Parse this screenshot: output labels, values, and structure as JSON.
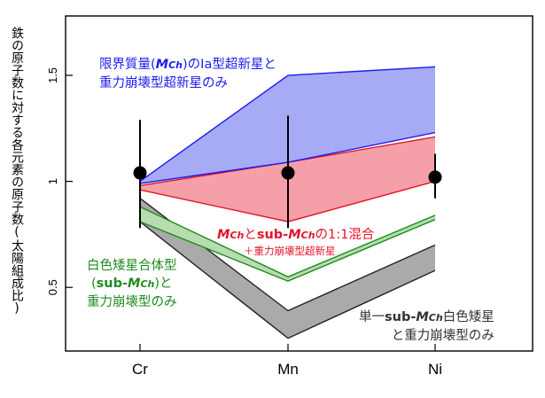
{
  "chart_data": {
    "type": "area",
    "ylabel": "鉄の原子数に対する各元素の原子数(太陽組成比)",
    "xlabel": "",
    "categories": [
      "Cr",
      "Mn",
      "Ni"
    ],
    "yticks": [
      "0.5",
      "1",
      "1.5"
    ],
    "ylim": [
      0.2,
      1.78
    ],
    "grid": false,
    "bands": [
      {
        "key": "single",
        "lower": [
          0.81,
          0.26,
          0.58
        ],
        "upper": [
          0.92,
          0.39,
          0.7
        ],
        "fill": "#aaaaaa",
        "stroke": "#222222"
      },
      {
        "key": "merger",
        "lower": [
          0.81,
          0.53,
          0.82
        ],
        "upper": [
          0.88,
          0.55,
          0.84
        ],
        "fill": "#b8dcb0",
        "stroke": "#1e8c1e"
      },
      {
        "key": "mix",
        "lower": [
          0.96,
          0.81,
          1.0
        ],
        "upper": [
          0.98,
          1.09,
          1.21
        ],
        "fill": "#f5a0a8",
        "stroke": "#e5142a"
      },
      {
        "key": "chand",
        "lower": [
          0.99,
          1.09,
          1.23
        ],
        "upper": [
          1.0,
          1.5,
          1.54
        ],
        "fill": "#a7aaf5",
        "stroke": "#1d1df0"
      }
    ],
    "observed": {
      "values": [
        1.04,
        1.04,
        1.02
      ],
      "err_low": [
        0.26,
        0.26,
        0.1
      ],
      "err_high": [
        0.25,
        0.27,
        0.11
      ]
    }
  },
  "annotations": {
    "chand_line1_a": "限界質量(",
    "chand_line1_em": "M",
    "chand_line1_sub": "Ch",
    "chand_line1_b": ")のIa型超新星と",
    "chand_line2": "重力崩壊型超新星のみ",
    "mix_em": "M",
    "mix_sub": "Ch",
    "mix_mid": "と",
    "mix_bold": "sub-",
    "mix_em2": "M",
    "mix_sub2": "Ch",
    "mix_tail": "の1:1混合",
    "mix_line2": "＋重力崩壊型超新星",
    "merger_line1": "白色矮星合体型",
    "merger_line2_a": "(",
    "merger_line2_bold": "sub-",
    "merger_line2_em": "M",
    "merger_line2_sub": "Ch",
    "merger_line2_b": ")と",
    "merger_line3": "重力崩壊型のみ",
    "single_line1_a": "単一",
    "single_line1_bold": "sub-",
    "single_line1_em": "M",
    "single_line1_sub": "Ch",
    "single_line1_b": "白色矮星",
    "single_line2": "と重力崩壊型のみ"
  }
}
